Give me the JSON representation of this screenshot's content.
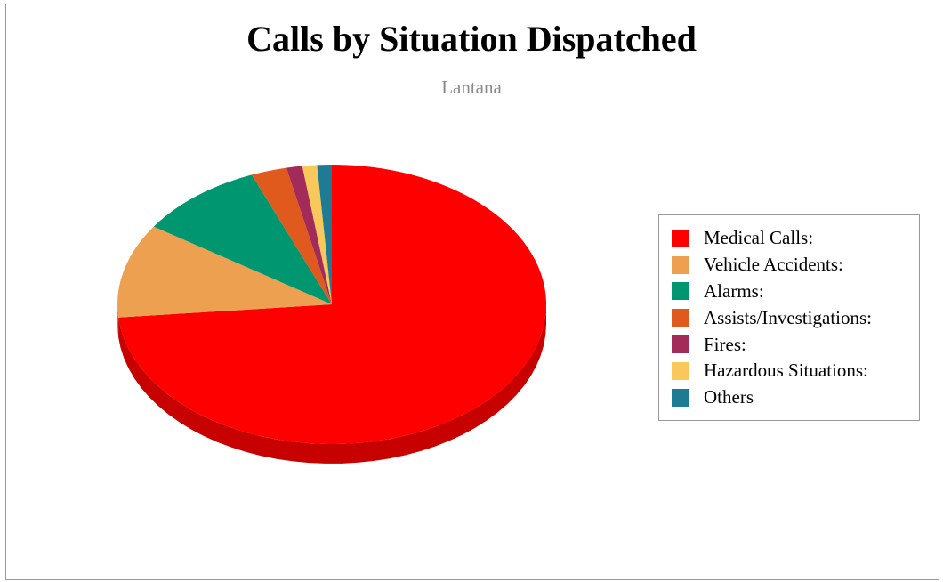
{
  "chart_data": {
    "type": "pie",
    "title": "Calls by Situation Dispatched",
    "subtitle": "Lantana",
    "legend_position": "right",
    "categories": [
      "Medical Calls:",
      "Vehicle Accidents:",
      "Alarms:",
      "Assists/Investigations:",
      "Fires:",
      "Hazardous Situations:",
      "Others"
    ],
    "values": [
      73.5,
      10.9,
      9.5,
      2.7,
      1.2,
      1.1,
      1.1
    ],
    "colors": [
      "#ff0000",
      "#eca050",
      "#009670",
      "#e05a1e",
      "#a22b5a",
      "#f8c85a",
      "#1f7a94"
    ]
  }
}
